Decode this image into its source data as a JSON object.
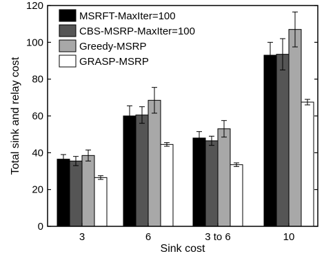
{
  "chart_data": {
    "type": "bar",
    "xlabel": "Sink cost",
    "ylabel": "Total sink and relay cost",
    "categories": [
      "3",
      "6",
      "3 to 6",
      "10"
    ],
    "ylim": [
      0,
      120
    ],
    "yticks": [
      0,
      20,
      40,
      60,
      80,
      100,
      120
    ],
    "grid": false,
    "legend_position": "top-left",
    "series": [
      {
        "name": "MSRFT-MaxIter=100",
        "color": "#000000",
        "values": [
          36.5,
          60.0,
          48.0,
          93.0
        ],
        "errors": [
          2.5,
          5.5,
          3.5,
          7.0
        ]
      },
      {
        "name": "CBS-MSRP-MaxIter=100",
        "color": "#555555",
        "values": [
          35.5,
          60.5,
          46.5,
          93.5
        ],
        "errors": [
          2.5,
          4.5,
          2.5,
          8.5
        ]
      },
      {
        "name": "Greedy-MSRP",
        "color": "#a8a8a8",
        "values": [
          38.5,
          68.5,
          53.0,
          107.0
        ],
        "errors": [
          3.0,
          7.0,
          4.5,
          9.5
        ]
      },
      {
        "name": "GRASP-MSRP",
        "color": "#ffffff",
        "values": [
          26.5,
          44.5,
          33.5,
          67.5
        ],
        "errors": [
          1.0,
          1.0,
          1.0,
          1.5
        ]
      }
    ]
  }
}
